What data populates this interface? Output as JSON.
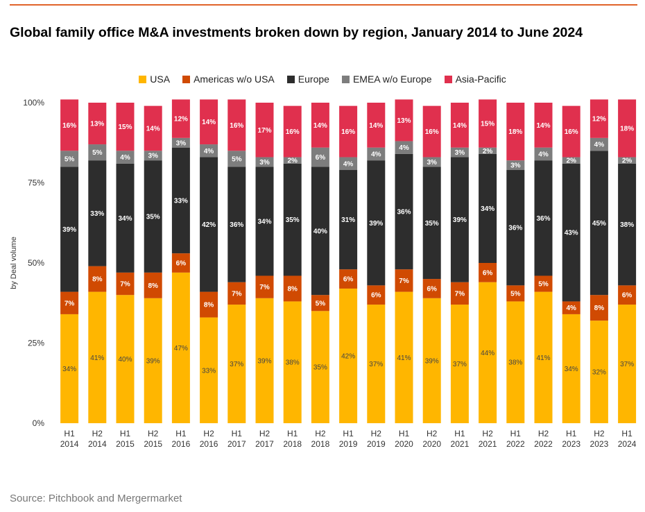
{
  "header": {
    "title": "Global family office M&A investments broken down by region, January 2014 to June 2024"
  },
  "footer": {
    "source": "Source: Pitchbook and Mergermarket"
  },
  "chart_data": {
    "type": "bar",
    "stacked": true,
    "title": "Global family office M&A investments broken down by region, January 2014 to June 2024",
    "ylabel": "by Deal volume",
    "xlabel": "",
    "ylim": [
      0,
      100
    ],
    "y_ticks": [
      "0%",
      "25%",
      "50%",
      "75%",
      "100%"
    ],
    "legend_position": "top-center",
    "grid": false,
    "categories": [
      [
        "H1",
        "2014"
      ],
      [
        "H2",
        "2014"
      ],
      [
        "H1",
        "2015"
      ],
      [
        "H2",
        "2015"
      ],
      [
        "H1",
        "2016"
      ],
      [
        "H2",
        "2016"
      ],
      [
        "H1",
        "2017"
      ],
      [
        "H2",
        "2017"
      ],
      [
        "H1",
        "2018"
      ],
      [
        "H2",
        "2018"
      ],
      [
        "H1",
        "2019"
      ],
      [
        "H2",
        "2019"
      ],
      [
        "H1",
        "2020"
      ],
      [
        "H2",
        "2020"
      ],
      [
        "H1",
        "2021"
      ],
      [
        "H2",
        "2021"
      ],
      [
        "H1",
        "2022"
      ],
      [
        "H2",
        "2022"
      ],
      [
        "H1",
        "2023"
      ],
      [
        "H2",
        "2023"
      ],
      [
        "H1",
        "2024"
      ]
    ],
    "series": [
      {
        "name": "USA",
        "color": "#ffb600",
        "label_style": "dark",
        "values": [
          34,
          41,
          40,
          39,
          47,
          33,
          37,
          39,
          38,
          35,
          42,
          37,
          41,
          39,
          37,
          44,
          38,
          41,
          34,
          32,
          37
        ]
      },
      {
        "name": "Americas w/o USA",
        "color": "#d04a02",
        "label_style": "light",
        "values": [
          7,
          8,
          7,
          8,
          6,
          8,
          7,
          7,
          8,
          5,
          6,
          6,
          7,
          6,
          7,
          6,
          5,
          5,
          4,
          8,
          6
        ]
      },
      {
        "name": "Europe",
        "color": "#2d2d2d",
        "label_style": "light",
        "values": [
          39,
          33,
          34,
          35,
          33,
          42,
          36,
          34,
          35,
          40,
          31,
          39,
          36,
          35,
          39,
          34,
          36,
          36,
          43,
          45,
          38
        ]
      },
      {
        "name": "EMEA w/o Europe",
        "color": "#7d7d7d",
        "label_style": "light",
        "values": [
          5,
          5,
          4,
          3,
          3,
          4,
          5,
          3,
          2,
          6,
          4,
          4,
          4,
          3,
          3,
          2,
          3,
          4,
          2,
          4,
          2
        ]
      },
      {
        "name": "Asia-Pacific",
        "color": "#e0304e",
        "label_style": "light",
        "values": [
          16,
          13,
          15,
          14,
          12,
          14,
          16,
          17,
          16,
          14,
          16,
          14,
          13,
          16,
          14,
          15,
          18,
          14,
          16,
          12,
          18
        ]
      }
    ]
  }
}
